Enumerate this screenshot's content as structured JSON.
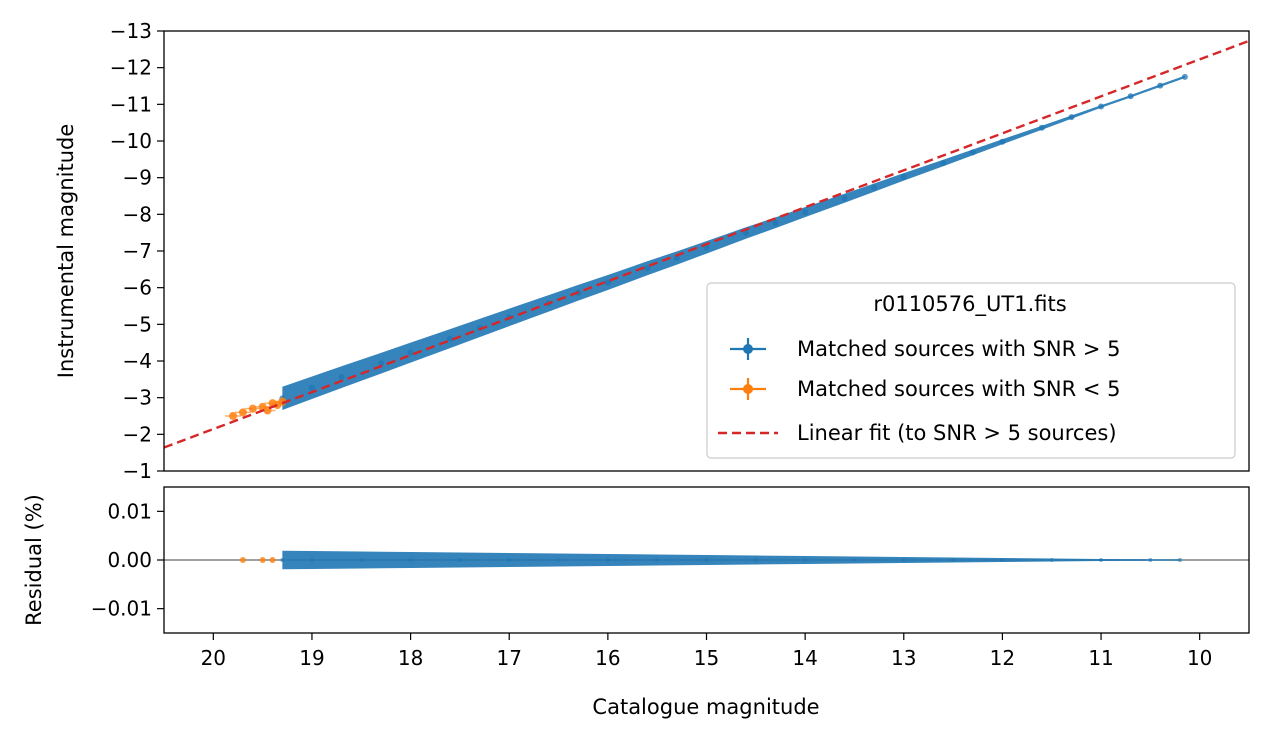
{
  "chart_data": [
    {
      "type": "scatter",
      "panel": "top",
      "xlabel": "",
      "ylabel": "Instrumental magnitude",
      "xlim": [
        20.5,
        9.5
      ],
      "ylim": [
        -1,
        -13
      ],
      "y_inverted": true,
      "x_inverted": true,
      "grid": false,
      "yticks": [
        -13,
        -12,
        -11,
        -10,
        -9,
        -8,
        -7,
        -6,
        -5,
        -4,
        -3,
        -2,
        -1
      ],
      "ytick_labels": [
        "−13",
        "−12",
        "−11",
        "−10",
        "−9",
        "−8",
        "−7",
        "−6",
        "−5",
        "−4",
        "−3",
        "−2",
        "−1"
      ],
      "legend": {
        "placement": "lower-right",
        "title": "r0110576_UT1.fits",
        "entries": [
          {
            "label": "Matched sources with SNR > 5",
            "color": "#1f77b4",
            "marker": "errorbar-point"
          },
          {
            "label": "Matched sources with SNR < 5",
            "color": "#ff7f0e",
            "marker": "errorbar-point"
          },
          {
            "label": "Linear fit (to SNR > 5 sources)",
            "color": "#d62728",
            "marker": "dashed-line"
          }
        ]
      },
      "series": [
        {
          "name": "Matched sources with SNR > 5",
          "color": "#1f77b4",
          "points": [
            [
              19.3,
              -2.98
            ],
            [
              19.0,
              -3.27
            ],
            [
              18.7,
              -3.56
            ],
            [
              18.3,
              -3.94
            ],
            [
              18.0,
              -4.23
            ],
            [
              17.6,
              -4.61
            ],
            [
              17.3,
              -4.9
            ],
            [
              17.0,
              -5.19
            ],
            [
              16.6,
              -5.57
            ],
            [
              16.3,
              -5.86
            ],
            [
              16.0,
              -6.14
            ],
            [
              15.6,
              -6.53
            ],
            [
              15.3,
              -6.81
            ],
            [
              15.0,
              -7.1
            ],
            [
              14.6,
              -7.49
            ],
            [
              14.3,
              -7.77
            ],
            [
              14.0,
              -8.06
            ],
            [
              13.6,
              -8.44
            ],
            [
              13.3,
              -8.73
            ],
            [
              13.0,
              -9.02
            ],
            [
              12.6,
              -9.4
            ],
            [
              12.3,
              -9.69
            ],
            [
              12.0,
              -9.98
            ],
            [
              11.6,
              -10.36
            ],
            [
              11.3,
              -10.65
            ],
            [
              11.0,
              -10.94
            ],
            [
              10.7,
              -11.22
            ],
            [
              10.4,
              -11.51
            ],
            [
              10.15,
              -11.75
            ]
          ]
        },
        {
          "name": "Matched sources with SNR < 5",
          "color": "#ff7f0e",
          "points": [
            [
              19.8,
              -2.5
            ],
            [
              19.7,
              -2.6
            ],
            [
              19.6,
              -2.7
            ],
            [
              19.5,
              -2.75
            ],
            [
              19.45,
              -2.65
            ],
            [
              19.4,
              -2.85
            ],
            [
              19.35,
              -2.8
            ],
            [
              19.3,
              -2.9
            ]
          ]
        },
        {
          "name": "Linear fit (to SNR > 5 sources)",
          "color": "#d62728",
          "line": {
            "x": [
              20.5,
              9.5
            ],
            "y": [
              -1.64,
              -12.73
            ]
          }
        }
      ]
    },
    {
      "type": "scatter",
      "panel": "bottom",
      "xlabel": "Catalogue magnitude",
      "ylabel": "Residual (%)",
      "xlim": [
        20.5,
        9.5
      ],
      "ylim": [
        -0.015,
        0.015
      ],
      "xticks": [
        20,
        19,
        18,
        17,
        16,
        15,
        14,
        13,
        12,
        11,
        10
      ],
      "xtick_labels": [
        "20",
        "19",
        "18",
        "17",
        "16",
        "15",
        "14",
        "13",
        "12",
        "11",
        "10"
      ],
      "yticks": [
        0.01,
        0.0,
        -0.01
      ],
      "ytick_labels": [
        "0.01",
        "0.00",
        "−0.01"
      ],
      "reference_line": {
        "y": 0.0,
        "color": "#808080"
      },
      "grid": false,
      "series": [
        {
          "name": "Matched sources with SNR > 5",
          "color": "#1f77b4",
          "points": [
            [
              19.3,
              0.0
            ],
            [
              19.0,
              0.0
            ],
            [
              18.5,
              0.0
            ],
            [
              18.0,
              0.0
            ],
            [
              17.5,
              0.0
            ],
            [
              17.0,
              0.0
            ],
            [
              16.5,
              0.0
            ],
            [
              16.0,
              0.0
            ],
            [
              15.5,
              0.0
            ],
            [
              15.0,
              0.0
            ],
            [
              14.5,
              0.0
            ],
            [
              14.0,
              0.0
            ],
            [
              13.5,
              0.0
            ],
            [
              13.0,
              0.0
            ],
            [
              12.5,
              0.0
            ],
            [
              12.0,
              0.0
            ],
            [
              11.5,
              0.0
            ],
            [
              11.0,
              0.0
            ],
            [
              10.5,
              0.0
            ],
            [
              10.2,
              0.0
            ]
          ]
        },
        {
          "name": "Matched sources with SNR < 5",
          "color": "#ff7f0e",
          "points": [
            [
              19.7,
              0.0
            ],
            [
              19.5,
              0.0
            ],
            [
              19.4,
              0.0
            ]
          ]
        }
      ]
    }
  ]
}
